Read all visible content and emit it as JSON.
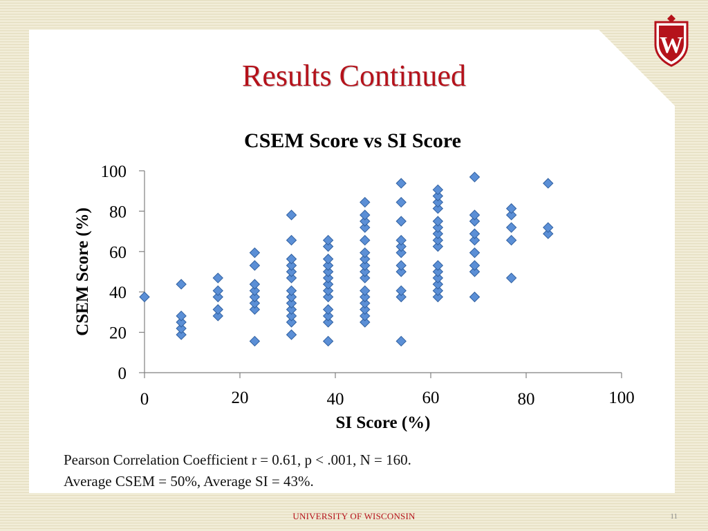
{
  "slide": {
    "title": "Results Continued",
    "caption_line1": "Pearson Correlation Coefficient r = 0.61, p < .001, N = 160.",
    "caption_line2": "Average CSEM = 50%, Average SI = 43%.",
    "footer": "UNIVERSITY OF WISCONSIN",
    "page_number": "11",
    "logo_text": "W"
  },
  "colors": {
    "title": "#b5121b",
    "marker_fill": "#5b8fd6",
    "marker_stroke": "#2f5f9f",
    "axis": "#808080"
  },
  "chart_data": {
    "type": "scatter",
    "title": "CSEM Score vs SI Score",
    "xlabel": "SI Score (%)",
    "ylabel": "CSEM Score (%)",
    "xlim": [
      0,
      100
    ],
    "ylim": [
      0,
      100
    ],
    "xticks": [
      "0",
      "20",
      "40",
      "60",
      "80",
      "100"
    ],
    "yticks": [
      "0",
      "20",
      "40",
      "60",
      "80",
      "100"
    ],
    "grid": false,
    "legend": "none",
    "series": [
      {
        "name": "CSEM vs SI",
        "points": [
          [
            0,
            37.5
          ],
          [
            7.7,
            18.8
          ],
          [
            7.7,
            21.9
          ],
          [
            7.7,
            25
          ],
          [
            7.7,
            28.1
          ],
          [
            7.7,
            43.8
          ],
          [
            15.4,
            28.1
          ],
          [
            15.4,
            31.3
          ],
          [
            15.4,
            37.5
          ],
          [
            15.4,
            40.6
          ],
          [
            15.4,
            46.9
          ],
          [
            23.1,
            15.6
          ],
          [
            23.1,
            31.3
          ],
          [
            23.1,
            34.4
          ],
          [
            23.1,
            37.5
          ],
          [
            23.1,
            40.6
          ],
          [
            23.1,
            43.8
          ],
          [
            23.1,
            53.1
          ],
          [
            23.1,
            59.4
          ],
          [
            30.8,
            18.8
          ],
          [
            30.8,
            25
          ],
          [
            30.8,
            28.1
          ],
          [
            30.8,
            31.3
          ],
          [
            30.8,
            34.4
          ],
          [
            30.8,
            37.5
          ],
          [
            30.8,
            40.6
          ],
          [
            30.8,
            46.9
          ],
          [
            30.8,
            50
          ],
          [
            30.8,
            53.1
          ],
          [
            30.8,
            56.3
          ],
          [
            30.8,
            65.6
          ],
          [
            30.8,
            78.1
          ],
          [
            38.5,
            15.6
          ],
          [
            38.5,
            25
          ],
          [
            38.5,
            28.1
          ],
          [
            38.5,
            31.3
          ],
          [
            38.5,
            37.5
          ],
          [
            38.5,
            40.6
          ],
          [
            38.5,
            43.8
          ],
          [
            38.5,
            46.9
          ],
          [
            38.5,
            50
          ],
          [
            38.5,
            53.1
          ],
          [
            38.5,
            56.3
          ],
          [
            38.5,
            62.5
          ],
          [
            38.5,
            65.6
          ],
          [
            46.2,
            25
          ],
          [
            46.2,
            28.1
          ],
          [
            46.2,
            31.3
          ],
          [
            46.2,
            34.4
          ],
          [
            46.2,
            37.5
          ],
          [
            46.2,
            40.6
          ],
          [
            46.2,
            46.9
          ],
          [
            46.2,
            50
          ],
          [
            46.2,
            53.1
          ],
          [
            46.2,
            56.3
          ],
          [
            46.2,
            59.4
          ],
          [
            46.2,
            65.6
          ],
          [
            46.2,
            71.9
          ],
          [
            46.2,
            75
          ],
          [
            46.2,
            78.1
          ],
          [
            46.2,
            84.4
          ],
          [
            53.8,
            15.6
          ],
          [
            53.8,
            37.5
          ],
          [
            53.8,
            40.6
          ],
          [
            53.8,
            50
          ],
          [
            53.8,
            53.1
          ],
          [
            53.8,
            59.4
          ],
          [
            53.8,
            62.5
          ],
          [
            53.8,
            65.6
          ],
          [
            53.8,
            75
          ],
          [
            53.8,
            84.4
          ],
          [
            53.8,
            93.8
          ],
          [
            61.5,
            37.5
          ],
          [
            61.5,
            40.6
          ],
          [
            61.5,
            43.8
          ],
          [
            61.5,
            46.9
          ],
          [
            61.5,
            50
          ],
          [
            61.5,
            53.1
          ],
          [
            61.5,
            62.5
          ],
          [
            61.5,
            65.6
          ],
          [
            61.5,
            68.8
          ],
          [
            61.5,
            71.9
          ],
          [
            61.5,
            75
          ],
          [
            61.5,
            81.3
          ],
          [
            61.5,
            84.4
          ],
          [
            61.5,
            87.5
          ],
          [
            61.5,
            90.6
          ],
          [
            69.2,
            37.5
          ],
          [
            69.2,
            50
          ],
          [
            69.2,
            53.1
          ],
          [
            69.2,
            59.4
          ],
          [
            69.2,
            65.6
          ],
          [
            69.2,
            68.8
          ],
          [
            69.2,
            75
          ],
          [
            69.2,
            78.1
          ],
          [
            69.2,
            96.9
          ],
          [
            76.9,
            46.9
          ],
          [
            76.9,
            65.6
          ],
          [
            76.9,
            71.9
          ],
          [
            76.9,
            78.1
          ],
          [
            76.9,
            81.3
          ],
          [
            84.6,
            68.8
          ],
          [
            84.6,
            71.9
          ],
          [
            84.6,
            93.8
          ]
        ]
      }
    ]
  }
}
